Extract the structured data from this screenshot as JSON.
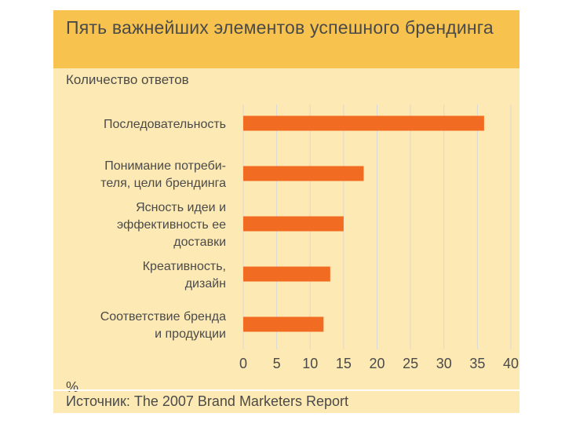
{
  "title": "Пять важнейших элементов успешного брендинга",
  "subtitle": "Количество ответов",
  "unit": "%",
  "source": "Источник: The 2007 Brand Marketers Report",
  "colors": {
    "header": "#f7c34e",
    "panel": "#fde9b3",
    "bar": "#f26b22",
    "grid": "#d9d9d9"
  },
  "chart_data": {
    "type": "bar",
    "orientation": "horizontal",
    "categories": [
      [
        "Последовательность"
      ],
      [
        "Понимание потреби-",
        "теля, цели брендинга"
      ],
      [
        "Ясность идеи и",
        "эффективность ее",
        "доставки"
      ],
      [
        "Креативность,",
        "дизайн"
      ],
      [
        "Соответствие бренда",
        "и продукции"
      ]
    ],
    "values": [
      36,
      18,
      15,
      13,
      12
    ],
    "xlim": [
      0,
      40
    ],
    "xticks": [
      0,
      5,
      10,
      15,
      20,
      25,
      30,
      35,
      40
    ],
    "xticklabels": [
      "0",
      "5",
      "10",
      "15",
      "20",
      "25",
      "30",
      "35",
      "40"
    ],
    "grid": true,
    "legend": false
  }
}
